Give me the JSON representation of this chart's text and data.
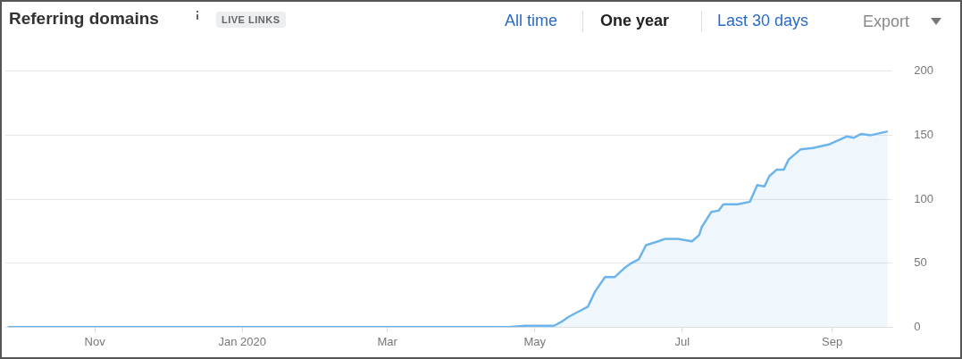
{
  "chart_data": {
    "type": "area",
    "title": "Referring domains",
    "annotations": [
      "LIVE LINKS",
      "All time",
      "One year",
      "Last 30 days",
      "Export"
    ],
    "x": [
      "2019-09-26",
      "2020-04-20",
      "2020-04-27",
      "2020-05-09",
      "2020-05-12",
      "2020-05-15",
      "2020-05-19",
      "2020-05-23",
      "2020-05-26",
      "2020-05-30",
      "2020-06-03",
      "2020-06-07",
      "2020-06-10",
      "2020-06-13",
      "2020-06-16",
      "2020-06-21",
      "2020-06-24",
      "2020-06-29",
      "2020-07-05",
      "2020-07-08",
      "2020-07-09",
      "2020-07-13",
      "2020-07-16",
      "2020-07-18",
      "2020-07-24",
      "2020-07-29",
      "2020-08-01",
      "2020-08-04",
      "2020-08-06",
      "2020-08-09",
      "2020-08-12",
      "2020-08-14",
      "2020-08-19",
      "2020-08-24",
      "2020-08-31",
      "2020-09-07",
      "2020-09-10",
      "2020-09-13",
      "2020-09-17",
      "2020-09-24"
    ],
    "series": [
      {
        "color": "#6cb4ec",
        "values": [
          0,
          0,
          1,
          1,
          4,
          8,
          12,
          16,
          28,
          39,
          39,
          46,
          50,
          53,
          64,
          67,
          69,
          69,
          67,
          72,
          78,
          90,
          91,
          96,
          96,
          98,
          111,
          110,
          118,
          123,
          123,
          131,
          139,
          140,
          143,
          149,
          148,
          151,
          150,
          153
        ]
      }
    ],
    "xlim": [
      "2019-09-25",
      "2020-09-26"
    ],
    "xticks": [
      {
        "value": "2019-11-01",
        "label": "Nov"
      },
      {
        "value": "2020-01-01",
        "label": "Jan 2020"
      },
      {
        "value": "2020-03-01",
        "label": "Mar"
      },
      {
        "value": "2020-05-01",
        "label": "May"
      },
      {
        "value": "2020-07-01",
        "label": "Jul"
      },
      {
        "value": "2020-09-01",
        "label": "Sep"
      }
    ],
    "ylim": [
      0,
      200
    ],
    "yticks": [
      0,
      50,
      100,
      150,
      200
    ],
    "grid": "y",
    "legend": false,
    "marker": "none",
    "line_style": "solid"
  }
}
